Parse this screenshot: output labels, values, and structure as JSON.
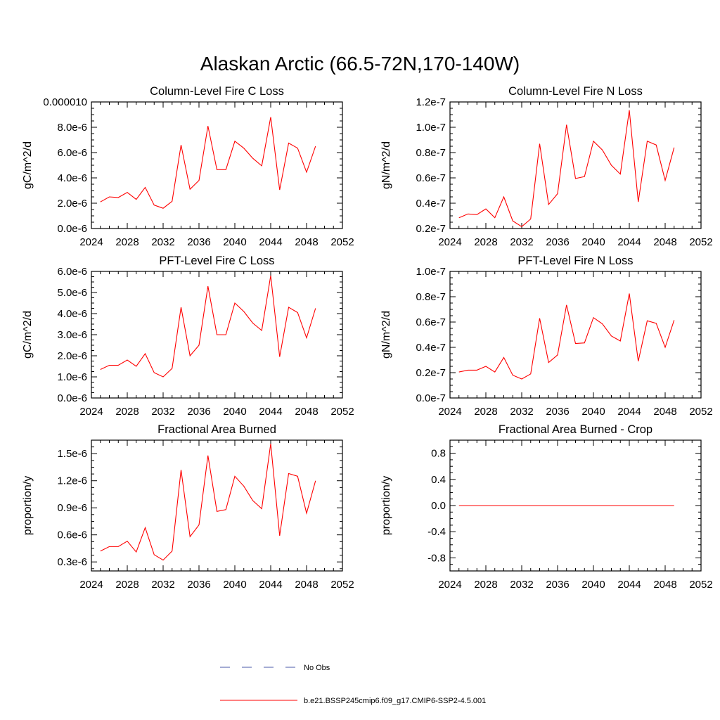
{
  "figure": {
    "title": "Alaskan Arctic (66.5-72N,170-140W)"
  },
  "colors": {
    "series": "#ff0000",
    "obs": "#4a5aa8",
    "axis": "#000000"
  },
  "legend": {
    "placement": "bottom-center",
    "entries": [
      {
        "label": "No Obs",
        "style": "dashed",
        "color": "#4a5aa8"
      },
      {
        "label": "b.e21.BSSP245cmip6.f09_g17.CMIP6-SSP2-4.5.001",
        "style": "solid",
        "color": "#ff0000"
      }
    ]
  },
  "chart_data": [
    {
      "type": "line",
      "title": "Column-Level Fire C Loss",
      "xlabel": "",
      "ylabel": "gC/m^2/d",
      "xlim": [
        2024,
        2052
      ],
      "ylim": [
        0,
        1e-05
      ],
      "xticks": [
        2024,
        2028,
        2032,
        2036,
        2040,
        2044,
        2048,
        2052
      ],
      "xtick_labels": [
        "2024",
        "2028",
        "2032",
        "2036",
        "2040",
        "2044",
        "2048",
        "2052"
      ],
      "yticks": [
        0,
        2e-06,
        4e-06,
        6e-06,
        8e-06,
        1e-05
      ],
      "ytick_labels": [
        "0.0e-6",
        "2.0e-6",
        "4.0e-6",
        "6.0e-6",
        "8.0e-6",
        "0.000010"
      ],
      "grid": false,
      "x": [
        2025,
        2026,
        2027,
        2028,
        2029,
        2030,
        2031,
        2032,
        2033,
        2034,
        2035,
        2036,
        2037,
        2038,
        2039,
        2040,
        2041,
        2042,
        2043,
        2044,
        2045,
        2046,
        2047,
        2048,
        2049
      ],
      "series": [
        {
          "name": "b.e21.BSSP245cmip6.f09_g17.CMIP6-SSP2-4.5.001",
          "values": [
            2.1e-06,
            2.5e-06,
            2.45e-06,
            2.85e-06,
            2.3e-06,
            3.25e-06,
            1.85e-06,
            1.6e-06,
            2.15e-06,
            6.6e-06,
            3.1e-06,
            3.8e-06,
            8.1e-06,
            4.65e-06,
            4.65e-06,
            6.9e-06,
            6.35e-06,
            5.55e-06,
            4.95e-06,
            8.8e-06,
            3.05e-06,
            6.75e-06,
            6.35e-06,
            4.45e-06,
            6.5e-06
          ]
        }
      ]
    },
    {
      "type": "line",
      "title": "Column-Level Fire N Loss",
      "xlabel": "",
      "ylabel": "gN/m^2/d",
      "xlim": [
        2024,
        2052
      ],
      "ylim": [
        2e-08,
        1.2e-07
      ],
      "xticks": [
        2024,
        2028,
        2032,
        2036,
        2040,
        2044,
        2048,
        2052
      ],
      "xtick_labels": [
        "2024",
        "2028",
        "2032",
        "2036",
        "2040",
        "2044",
        "2048",
        "2052"
      ],
      "yticks": [
        2e-08,
        4e-08,
        6e-08,
        8e-08,
        1e-07,
        1.2e-07
      ],
      "ytick_labels": [
        "0.2e-7",
        "0.4e-7",
        "0.6e-7",
        "0.8e-7",
        "1.0e-7",
        "1.2e-7"
      ],
      "grid": false,
      "x": [
        2025,
        2026,
        2027,
        2028,
        2029,
        2030,
        2031,
        2032,
        2033,
        2034,
        2035,
        2036,
        2037,
        2038,
        2039,
        2040,
        2041,
        2042,
        2043,
        2044,
        2045,
        2046,
        2047,
        2048,
        2049
      ],
      "series": [
        {
          "name": "b.e21.BSSP245cmip6.f09_g17.CMIP6-SSP2-4.5.001",
          "values": [
            2.85e-08,
            3.15e-08,
            3.1e-08,
            3.55e-08,
            2.85e-08,
            4.5e-08,
            2.6e-08,
            2.15e-08,
            2.75e-08,
            8.7e-08,
            3.9e-08,
            4.75e-08,
            1.02e-07,
            5.95e-08,
            6.1e-08,
            8.9e-08,
            8.2e-08,
            7e-08,
            6.3e-08,
            1.135e-07,
            4.1e-08,
            8.9e-08,
            8.6e-08,
            5.8e-08,
            8.4e-08
          ]
        }
      ]
    },
    {
      "type": "line",
      "title": "PFT-Level Fire C Loss",
      "xlabel": "",
      "ylabel": "gC/m^2/d",
      "xlim": [
        2024,
        2052
      ],
      "ylim": [
        0,
        6e-06
      ],
      "xticks": [
        2024,
        2028,
        2032,
        2036,
        2040,
        2044,
        2048,
        2052
      ],
      "xtick_labels": [
        "2024",
        "2028",
        "2032",
        "2036",
        "2040",
        "2044",
        "2048",
        "2052"
      ],
      "yticks": [
        0,
        1e-06,
        2e-06,
        3e-06,
        4e-06,
        5e-06,
        6e-06
      ],
      "ytick_labels": [
        "0.0e-6",
        "1.0e-6",
        "2.0e-6",
        "3.0e-6",
        "4.0e-6",
        "5.0e-6",
        "6.0e-6"
      ],
      "grid": false,
      "x": [
        2025,
        2026,
        2027,
        2028,
        2029,
        2030,
        2031,
        2032,
        2033,
        2034,
        2035,
        2036,
        2037,
        2038,
        2039,
        2040,
        2041,
        2042,
        2043,
        2044,
        2045,
        2046,
        2047,
        2048,
        2049
      ],
      "series": [
        {
          "name": "b.e21.BSSP245cmip6.f09_g17.CMIP6-SSP2-4.5.001",
          "values": [
            1.35e-06,
            1.55e-06,
            1.55e-06,
            1.8e-06,
            1.5e-06,
            2.1e-06,
            1.2e-06,
            1e-06,
            1.4e-06,
            4.3e-06,
            2e-06,
            2.5e-06,
            5.3e-06,
            3e-06,
            3e-06,
            4.5e-06,
            4.1e-06,
            3.55e-06,
            3.2e-06,
            5.8e-06,
            1.95e-06,
            4.3e-06,
            4.05e-06,
            2.85e-06,
            4.25e-06
          ]
        }
      ]
    },
    {
      "type": "line",
      "title": "PFT-Level Fire N Loss",
      "xlabel": "",
      "ylabel": "gN/m^2/d",
      "xlim": [
        2024,
        2052
      ],
      "ylim": [
        0,
        1e-07
      ],
      "xticks": [
        2024,
        2028,
        2032,
        2036,
        2040,
        2044,
        2048,
        2052
      ],
      "xtick_labels": [
        "2024",
        "2028",
        "2032",
        "2036",
        "2040",
        "2044",
        "2048",
        "2052"
      ],
      "yticks": [
        0,
        2e-08,
        4e-08,
        6e-08,
        8e-08,
        1e-07
      ],
      "ytick_labels": [
        "0.0e-7",
        "0.2e-7",
        "0.4e-7",
        "0.6e-7",
        "0.8e-7",
        "1.0e-7"
      ],
      "grid": false,
      "x": [
        2025,
        2026,
        2027,
        2028,
        2029,
        2030,
        2031,
        2032,
        2033,
        2034,
        2035,
        2036,
        2037,
        2038,
        2039,
        2040,
        2041,
        2042,
        2043,
        2044,
        2045,
        2046,
        2047,
        2048,
        2049
      ],
      "series": [
        {
          "name": "b.e21.BSSP245cmip6.f09_g17.CMIP6-SSP2-4.5.001",
          "values": [
            2.05e-08,
            2.2e-08,
            2.2e-08,
            2.5e-08,
            2.05e-08,
            3.2e-08,
            1.8e-08,
            1.5e-08,
            1.9e-08,
            6.3e-08,
            2.8e-08,
            3.4e-08,
            7.35e-08,
            4.3e-08,
            4.35e-08,
            6.35e-08,
            5.85e-08,
            4.9e-08,
            4.5e-08,
            8.25e-08,
            2.9e-08,
            6.1e-08,
            5.9e-08,
            4e-08,
            6.15e-08
          ]
        }
      ]
    },
    {
      "type": "line",
      "title": "Fractional Area Burned",
      "xlabel": "",
      "ylabel": "proportion/y",
      "xlim": [
        2024,
        2052
      ],
      "ylim": [
        2e-07,
        1.65e-06
      ],
      "xticks": [
        2024,
        2028,
        2032,
        2036,
        2040,
        2044,
        2048,
        2052
      ],
      "xtick_labels": [
        "2024",
        "2028",
        "2032",
        "2036",
        "2040",
        "2044",
        "2048",
        "2052"
      ],
      "yticks": [
        3e-07,
        6e-07,
        9e-07,
        1.2e-06,
        1.5e-06
      ],
      "ytick_labels": [
        "0.3e-6",
        "0.6e-6",
        "0.9e-6",
        "1.2e-6",
        "1.5e-6"
      ],
      "grid": false,
      "x": [
        2025,
        2026,
        2027,
        2028,
        2029,
        2030,
        2031,
        2032,
        2033,
        2034,
        2035,
        2036,
        2037,
        2038,
        2039,
        2040,
        2041,
        2042,
        2043,
        2044,
        2045,
        2046,
        2047,
        2048,
        2049
      ],
      "series": [
        {
          "name": "b.e21.BSSP245cmip6.f09_g17.CMIP6-SSP2-4.5.001",
          "values": [
            4.2e-07,
            4.7e-07,
            4.7e-07,
            5.3e-07,
            4.1e-07,
            6.8e-07,
            3.8e-07,
            3.2e-07,
            4.2e-07,
            1.32e-06,
            5.8e-07,
            7.1e-07,
            1.48e-06,
            8.6e-07,
            8.8e-07,
            1.25e-06,
            1.14e-06,
            9.8e-07,
            8.9e-07,
            1.61e-06,
            5.9e-07,
            1.28e-06,
            1.25e-06,
            8.4e-07,
            1.2e-06
          ]
        }
      ]
    },
    {
      "type": "line",
      "title": "Fractional Area Burned - Crop",
      "xlabel": "",
      "ylabel": "proportion/y",
      "xlim": [
        2024,
        2052
      ],
      "ylim": [
        -1,
        1
      ],
      "xticks": [
        2024,
        2028,
        2032,
        2036,
        2040,
        2044,
        2048,
        2052
      ],
      "xtick_labels": [
        "2024",
        "2028",
        "2032",
        "2036",
        "2040",
        "2044",
        "2048",
        "2052"
      ],
      "yticks": [
        -0.8,
        -0.4,
        0,
        0.4,
        0.8
      ],
      "ytick_labels": [
        "-0.8",
        "-0.4",
        "0.0",
        "0.4",
        "0.8"
      ],
      "grid": false,
      "x": [
        2025,
        2026,
        2027,
        2028,
        2029,
        2030,
        2031,
        2032,
        2033,
        2034,
        2035,
        2036,
        2037,
        2038,
        2039,
        2040,
        2041,
        2042,
        2043,
        2044,
        2045,
        2046,
        2047,
        2048,
        2049
      ],
      "series": [
        {
          "name": "b.e21.BSSP245cmip6.f09_g17.CMIP6-SSP2-4.5.001",
          "values": [
            0,
            0,
            0,
            0,
            0,
            0,
            0,
            0,
            0,
            0,
            0,
            0,
            0,
            0,
            0,
            0,
            0,
            0,
            0,
            0,
            0,
            0,
            0,
            0,
            0
          ]
        }
      ]
    }
  ]
}
